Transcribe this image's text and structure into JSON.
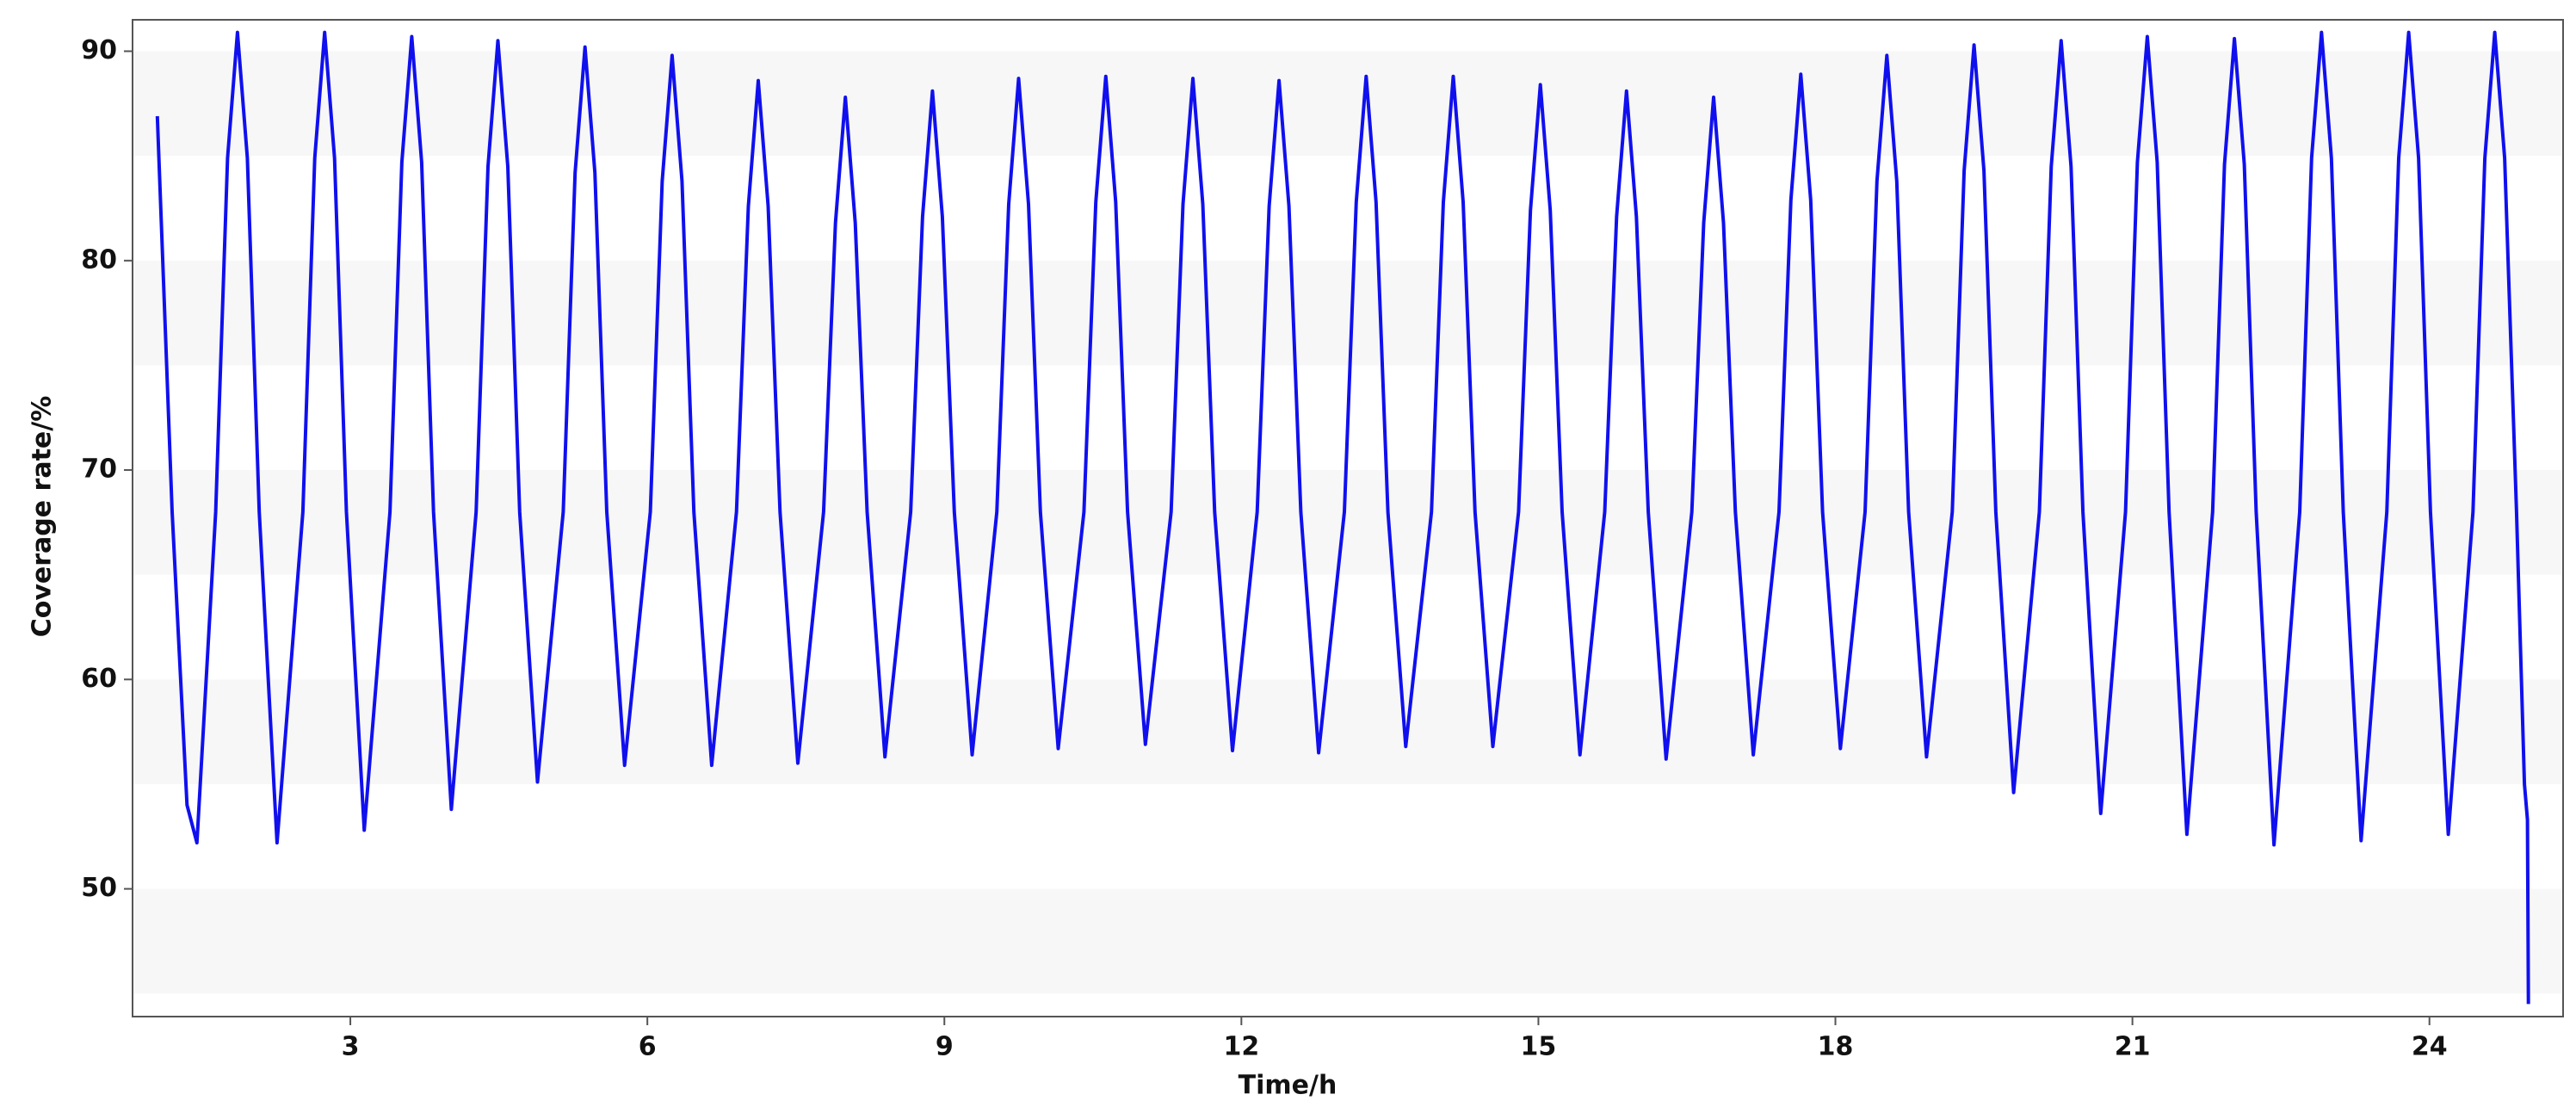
{
  "chart_data": {
    "type": "line",
    "xlabel": "Time/h",
    "ylabel": "Coverage rate/%",
    "xlim": [
      0.8,
      25.35
    ],
    "ylim": [
      43.9,
      91.5
    ],
    "xticks": [
      3,
      6,
      9,
      12,
      15,
      18,
      21,
      24
    ],
    "yticks": [
      50,
      60,
      70,
      80,
      90
    ],
    "grid": "bands",
    "series": [
      {
        "color": "#1010ee",
        "x": [
          1.05,
          1.2,
          1.35,
          1.45,
          1.64,
          1.76,
          1.86,
          1.96,
          2.08,
          2.26,
          2.52,
          2.64,
          2.74,
          2.84,
          2.96,
          3.14,
          3.4,
          3.52,
          3.62,
          3.72,
          3.84,
          4.02,
          4.27,
          4.39,
          4.49,
          4.59,
          4.71,
          4.89,
          5.15,
          5.27,
          5.37,
          5.47,
          5.59,
          5.77,
          6.03,
          6.15,
          6.25,
          6.35,
          6.47,
          6.65,
          6.9,
          7.02,
          7.12,
          7.22,
          7.34,
          7.52,
          7.78,
          7.9,
          8.0,
          8.1,
          8.22,
          8.4,
          8.66,
          8.78,
          8.88,
          8.98,
          9.1,
          9.28,
          9.53,
          9.65,
          9.75,
          9.85,
          9.97,
          10.15,
          10.41,
          10.53,
          10.63,
          10.73,
          10.85,
          11.03,
          11.29,
          11.41,
          11.51,
          11.61,
          11.73,
          11.91,
          12.16,
          12.28,
          12.38,
          12.48,
          12.6,
          12.78,
          13.04,
          13.16,
          13.26,
          13.36,
          13.48,
          13.66,
          13.92,
          14.04,
          14.14,
          14.24,
          14.36,
          14.54,
          14.8,
          14.92,
          15.02,
          15.12,
          15.24,
          15.42,
          15.67,
          15.79,
          15.89,
          15.99,
          16.11,
          16.29,
          16.55,
          16.67,
          16.77,
          16.87,
          16.99,
          17.17,
          17.43,
          17.55,
          17.65,
          17.75,
          17.87,
          18.05,
          18.3,
          18.42,
          18.52,
          18.62,
          18.74,
          18.92,
          19.18,
          19.3,
          19.4,
          19.5,
          19.62,
          19.8,
          20.06,
          20.18,
          20.28,
          20.38,
          20.5,
          20.68,
          20.93,
          21.05,
          21.15,
          21.25,
          21.37,
          21.55,
          21.81,
          21.93,
          22.03,
          22.13,
          22.25,
          22.43,
          22.69,
          22.81,
          22.91,
          23.01,
          23.13,
          23.31,
          23.57,
          23.69,
          23.79,
          23.89,
          24.01,
          24.19,
          24.44,
          24.56,
          24.66,
          24.76,
          24.88,
          24.96,
          24.99,
          25.0
        ],
        "values": [
          86.9,
          68,
          54,
          52.2,
          68,
          84.9,
          90.9,
          84.9,
          68,
          52.2,
          68,
          84.9,
          90.9,
          84.9,
          68,
          52.8,
          68,
          84.7,
          90.7,
          84.7,
          68,
          53.8,
          68,
          84.5,
          90.5,
          84.5,
          68,
          55.1,
          68,
          84.2,
          90.2,
          84.2,
          68,
          55.9,
          68,
          83.8,
          89.8,
          83.8,
          68,
          55.9,
          68,
          82.6,
          88.6,
          82.6,
          68,
          56.0,
          68,
          81.8,
          87.8,
          81.8,
          68,
          56.3,
          68,
          82.1,
          88.1,
          82.1,
          68,
          56.4,
          68,
          82.7,
          88.7,
          82.7,
          68,
          56.7,
          68,
          82.8,
          88.8,
          82.8,
          68,
          56.9,
          68,
          82.7,
          88.7,
          82.7,
          68,
          56.6,
          68,
          82.6,
          88.6,
          82.6,
          68,
          56.5,
          68,
          82.8,
          88.8,
          82.8,
          68,
          56.8,
          68,
          82.8,
          88.8,
          82.8,
          68,
          56.8,
          68,
          82.4,
          88.4,
          82.4,
          68,
          56.4,
          68,
          82.1,
          88.1,
          82.1,
          68,
          56.2,
          68,
          81.8,
          87.8,
          81.8,
          68,
          56.4,
          68,
          82.9,
          88.9,
          82.9,
          68,
          56.7,
          68,
          83.8,
          89.8,
          83.8,
          68,
          56.3,
          68,
          84.3,
          90.3,
          84.3,
          68,
          54.6,
          68,
          84.5,
          90.5,
          84.5,
          68,
          53.6,
          68,
          84.7,
          90.7,
          84.7,
          68,
          52.6,
          68,
          84.6,
          90.6,
          84.6,
          68,
          52.1,
          68,
          84.9,
          90.9,
          84.9,
          68,
          52.3,
          68,
          84.9,
          90.9,
          84.9,
          68,
          52.6,
          68,
          84.9,
          90.9,
          84.9,
          68,
          55,
          53.3,
          44.5
        ]
      }
    ]
  }
}
